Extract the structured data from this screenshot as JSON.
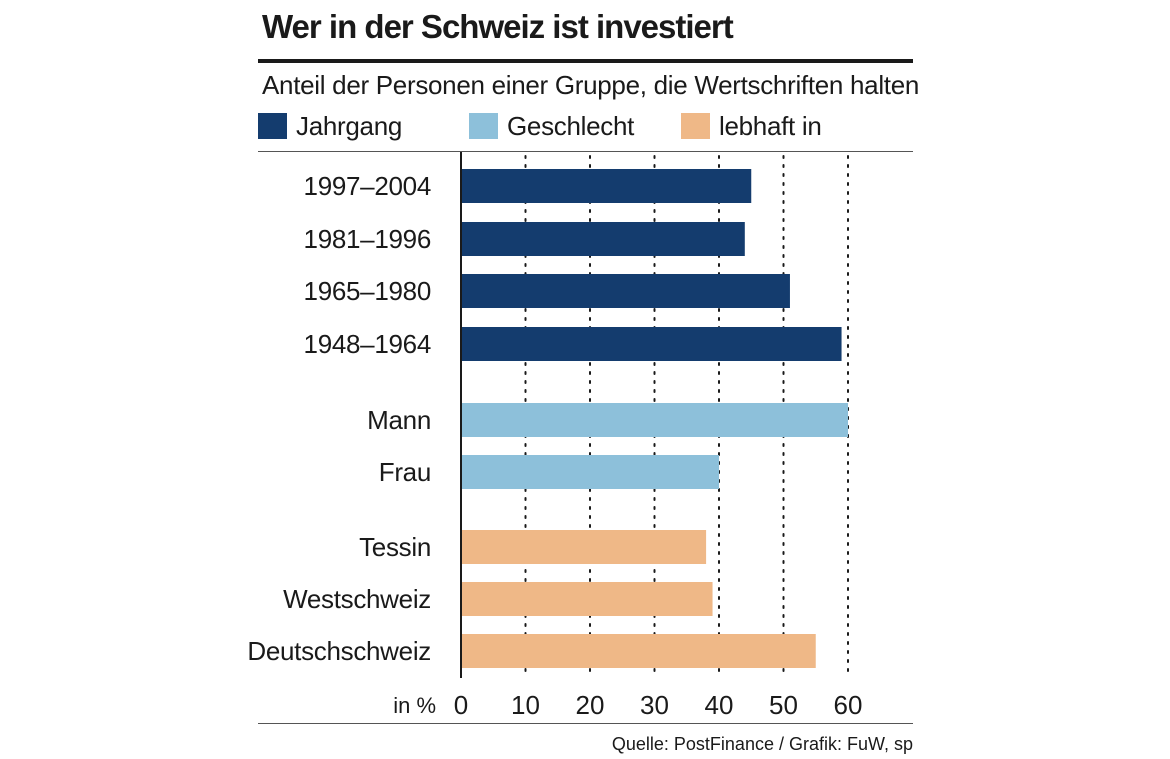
{
  "title": "Wer in der Schweiz ist investiert",
  "subtitle": "Anteil der Personen einer Gruppe, die Wertschriften halten",
  "legend": [
    {
      "label": "Jahrgang",
      "color": "#143c6e"
    },
    {
      "label": "Geschlecht",
      "color": "#8dc0da"
    },
    {
      "label": "lebhaft in",
      "color": "#efb887"
    }
  ],
  "source": "Quelle: PostFinance / Grafik: FuW, sp",
  "chart_data": {
    "type": "bar",
    "orientation": "horizontal",
    "title": "Wer in der Schweiz ist investiert",
    "subtitle": "Anteil der Personen einer Gruppe, die Wertschriften halten",
    "xlabel": "in %",
    "xlim": [
      0,
      60
    ],
    "xticks": [
      0,
      10,
      20,
      30,
      40,
      50,
      60
    ],
    "grid": "vertical dotted",
    "groups": [
      {
        "name": "Jahrgang",
        "color": "#143c6e",
        "categories": [
          "1997–2004",
          "1981–1996",
          "1965–1980",
          "1948–1964"
        ],
        "values": [
          45,
          44,
          51,
          59
        ]
      },
      {
        "name": "Geschlecht",
        "color": "#8dc0da",
        "categories": [
          "Mann",
          "Frau"
        ],
        "values": [
          60,
          40
        ]
      },
      {
        "name": "lebhaft in",
        "color": "#efb887",
        "categories": [
          "Tessin",
          "Westschweiz",
          "Deutschschweiz"
        ],
        "values": [
          38,
          39,
          55
        ]
      }
    ]
  }
}
